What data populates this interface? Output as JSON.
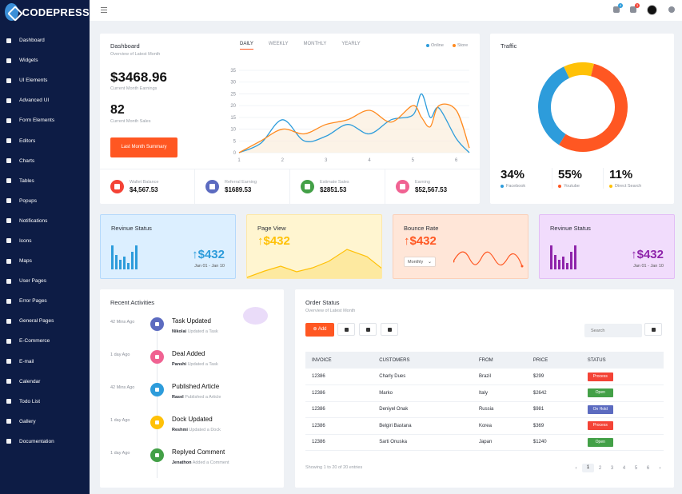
{
  "brand": {
    "name": "CODEPRESS"
  },
  "sidebar": {
    "items": [
      {
        "label": "Dashboard"
      },
      {
        "label": "Widgets"
      },
      {
        "label": "UI Elements"
      },
      {
        "label": "Advanced UI"
      },
      {
        "label": "Form Elements"
      },
      {
        "label": "Editors"
      },
      {
        "label": "Charts"
      },
      {
        "label": "Tables"
      },
      {
        "label": "Popups"
      },
      {
        "label": "Notifications"
      },
      {
        "label": "Icons"
      },
      {
        "label": "Maps"
      },
      {
        "label": "User Pages"
      },
      {
        "label": "Error Pages"
      },
      {
        "label": "General Pages"
      },
      {
        "label": "E-Commerce"
      },
      {
        "label": "E-mail"
      },
      {
        "label": "Calendar"
      },
      {
        "label": "Todo List"
      },
      {
        "label": "Gallery"
      },
      {
        "label": "Documentation"
      }
    ]
  },
  "topbar": {
    "notifications_count": "4",
    "messages_count": "3"
  },
  "dashboard": {
    "title": "Dashboard",
    "subtitle": "Overview of Latest Month",
    "tabs": [
      "DAILY",
      "WEEKLY",
      "MONTHLY",
      "YEARLY"
    ],
    "active_tab": "DAILY",
    "legend": [
      "Online",
      "Store"
    ],
    "earnings_value": "$3468.96",
    "earnings_label": "Current Month Earnings",
    "sales_value": "82",
    "sales_label": "Current Month Sales",
    "summary_button": "Last Month Summary",
    "metrics": [
      {
        "label": "Wallet Balance",
        "value": "$4,567.53",
        "color": "#f44336"
      },
      {
        "label": "Referral Earning",
        "value": "$1689.53",
        "color": "#5c6bc0"
      },
      {
        "label": "Estimate Sales",
        "value": "$2851.53",
        "color": "#43a047"
      },
      {
        "label": "Earning",
        "value": "$52,567.53",
        "color": "#f06292"
      }
    ]
  },
  "chart_data": [
    {
      "type": "line",
      "x": [
        1,
        1.5,
        2,
        2.5,
        3,
        3.5,
        4,
        4.5,
        5,
        5.2,
        5.4,
        5.6,
        6,
        6.3
      ],
      "xticks": [
        "1",
        "2",
        "3",
        "4",
        "5",
        "6"
      ],
      "yticks": [
        "0",
        "5",
        "10",
        "15",
        "20",
        "25",
        "30",
        "35"
      ],
      "ylim": [
        0,
        35
      ],
      "series": [
        {
          "name": "Online",
          "color": "#2d9cdb",
          "values": [
            0,
            4,
            14,
            5,
            7,
            12,
            8,
            14,
            16,
            25,
            15,
            19,
            6,
            0
          ]
        },
        {
          "name": "Store",
          "color": "#ff8a1f",
          "values": [
            0,
            5,
            10,
            8,
            12,
            14,
            18,
            13,
            20,
            15,
            11,
            20,
            18,
            2
          ]
        }
      ]
    },
    {
      "type": "pie",
      "title": "Traffic",
      "categories": [
        "Youtube",
        "Facebook",
        "Direct Search"
      ],
      "values": [
        55,
        34,
        11
      ],
      "colors": [
        "#ff5722",
        "#2d9cdb",
        "#ffc107"
      ]
    }
  ],
  "traffic": {
    "title": "Traffic",
    "stats": [
      {
        "value": "34%",
        "label": "Facebook",
        "color": "#2d9cdb"
      },
      {
        "value": "55%",
        "label": "Youtube",
        "color": "#ff5722"
      },
      {
        "value": "11%",
        "label": "Direct Search",
        "color": "#ffc107"
      }
    ]
  },
  "stat_cards": [
    {
      "title": "Revinue Status",
      "value": "$432",
      "date": "Jan 01 - Jan 10",
      "color": "#2d9cdb",
      "bg": "#dcefff",
      "border": "#b5d9fb"
    },
    {
      "title": "Page View",
      "value": "$432",
      "color": "#ffc107",
      "bg": "#fff5d0",
      "border": "#fde8a8"
    },
    {
      "title": "Bounce Rate",
      "value": "$432",
      "select": "Monthly",
      "color": "#ff5722",
      "bg": "#ffe6d8",
      "border": "#fbd0b8"
    },
    {
      "title": "Revinue Status",
      "value": "$432",
      "date": "Jan 01 - Jan 10",
      "color": "#8e24aa",
      "bg": "#f1dcfc",
      "border": "#e2bdf6"
    }
  ],
  "activities": {
    "title": "Recent Activities",
    "items": [
      {
        "time": "42 Mins Ago",
        "title": "Task Updated",
        "user": "Nikolai",
        "action": "Updated a Task",
        "color": "#5c6bc0"
      },
      {
        "time": "1 day Ago",
        "title": "Deal Added",
        "user": "Panshi",
        "action": "Updated a Task",
        "color": "#f06292"
      },
      {
        "time": "42 Mins Ago",
        "title": "Published Article",
        "user": "Rasel",
        "action": "Published a Article",
        "color": "#2d9cdb"
      },
      {
        "time": "1 day Ago",
        "title": "Dock Updated",
        "user": "Reshmi",
        "action": "Updated a Dock",
        "color": "#ffc107"
      },
      {
        "time": "1 day Ago",
        "title": "Replyed Comment",
        "user": "Jenathon",
        "action": "Added a Comment",
        "color": "#43a047"
      }
    ]
  },
  "orders": {
    "title": "Order Status",
    "subtitle": "Overview of Latest Month",
    "add_label": "Add",
    "search_placeholder": "Search",
    "columns": [
      "INVOICE",
      "CUSTOMERS",
      "FROM",
      "PRICE",
      "STATUS"
    ],
    "rows": [
      {
        "invoice": "12386",
        "customer": "Charly Dues",
        "from": "Brazil",
        "price": "$299",
        "status": "Process",
        "color": "#f44336"
      },
      {
        "invoice": "12386",
        "customer": "Marko",
        "from": "Italy",
        "price": "$2642",
        "status": "Open",
        "color": "#43a047"
      },
      {
        "invoice": "12386",
        "customer": "Deniyel Onak",
        "from": "Russia",
        "price": "$981",
        "status": "On Hold",
        "color": "#5c6bc0"
      },
      {
        "invoice": "12386",
        "customer": "Belgiri Bastana",
        "from": "Korea",
        "price": "$369",
        "status": "Process",
        "color": "#f44336"
      },
      {
        "invoice": "12386",
        "customer": "Sarti Onuska",
        "from": "Japan",
        "price": "$1240",
        "status": "Open",
        "color": "#43a047"
      }
    ],
    "showing": "Showing 1 to 20 of 20 entries",
    "pages": [
      "1",
      "2",
      "3",
      "4",
      "5",
      "6"
    ],
    "current_page": "1"
  }
}
